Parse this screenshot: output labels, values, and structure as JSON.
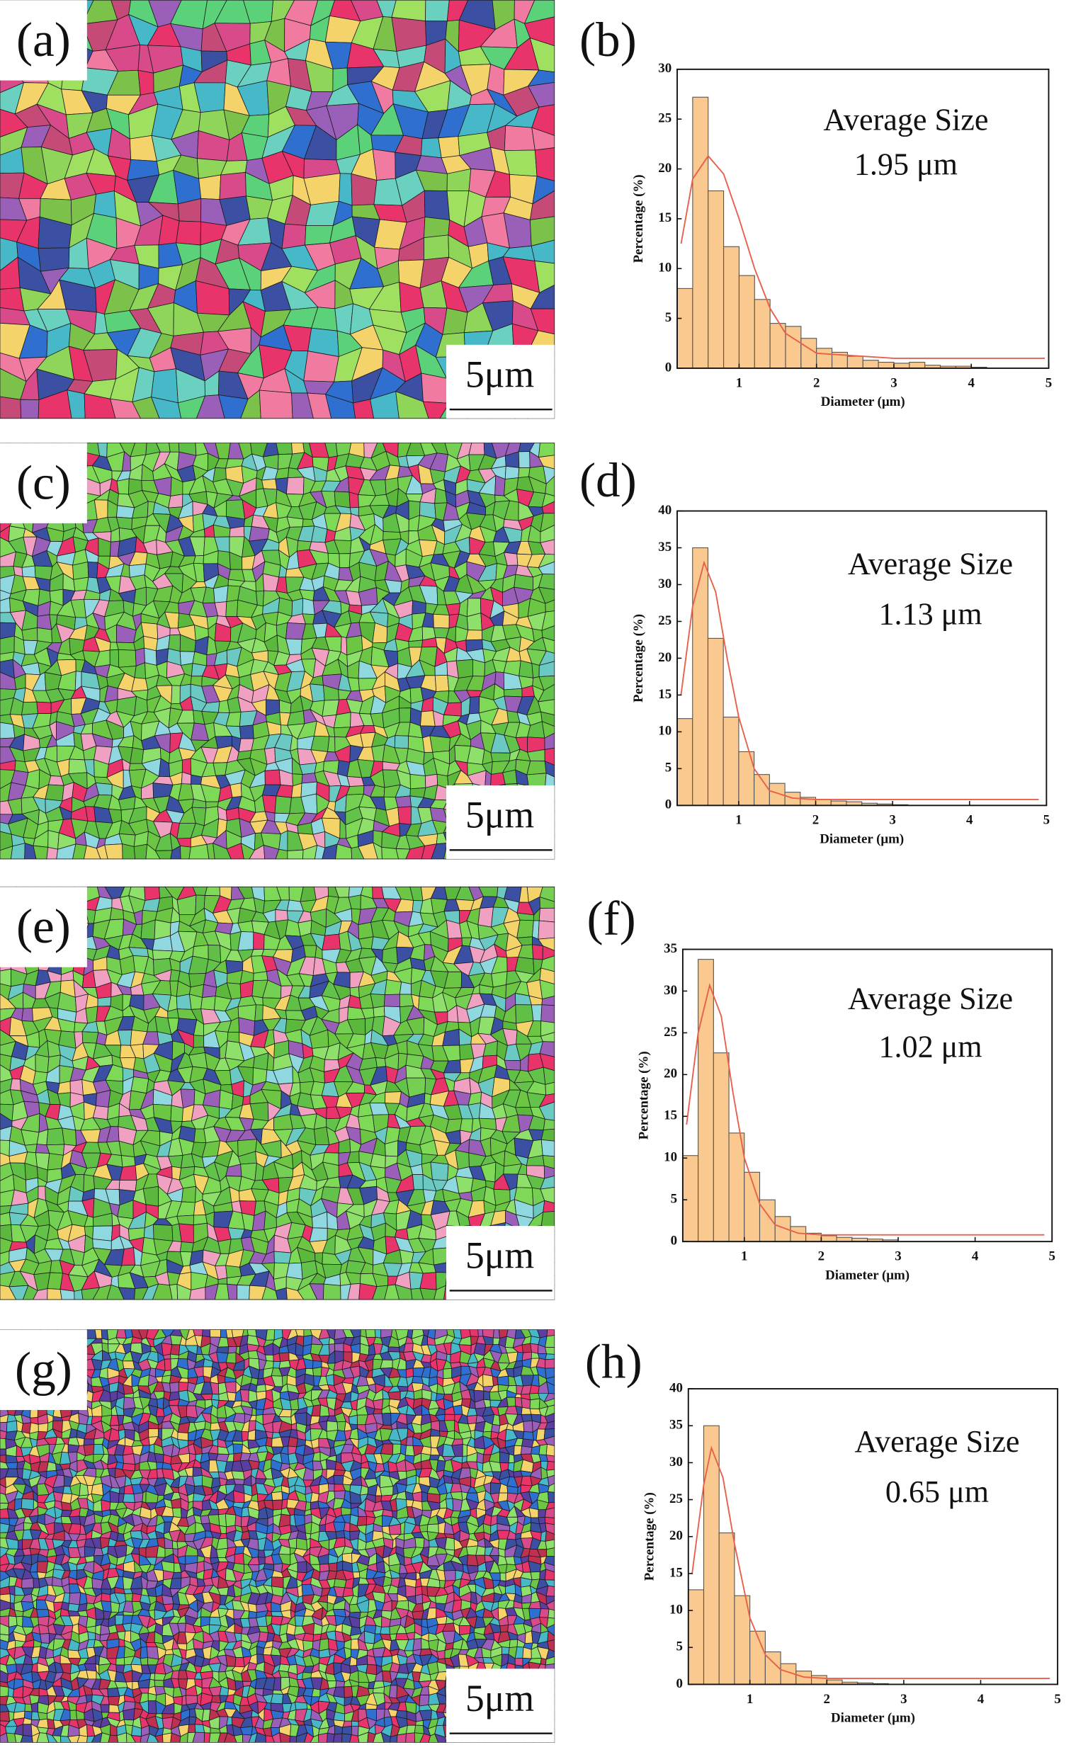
{
  "maps": [
    {
      "label": "(a)",
      "scale_bar": "5μm"
    },
    {
      "label": "(c)",
      "scale_bar": "5μm"
    },
    {
      "label": "(e)",
      "scale_bar": "5μm"
    },
    {
      "label": "(g)",
      "scale_bar": "5μm"
    }
  ],
  "chart_data": [
    {
      "type": "histogram",
      "label": "(b)",
      "annotations": [
        "Average Size",
        "1.95 μm"
      ],
      "x_label": "Diameter (μm)",
      "y_label": "Percentage (%)",
      "bins": [
        0.2,
        0.4,
        0.6,
        0.8,
        1.0,
        1.2,
        1.4,
        1.6,
        1.8,
        2.0,
        2.2,
        2.4,
        2.6,
        2.8,
        3.0,
        3.2,
        3.4,
        3.6,
        3.8,
        4.0,
        4.2
      ],
      "values": [
        8,
        27.2,
        17.8,
        12.2,
        9.3,
        6.9,
        4.5,
        4.2,
        3,
        2,
        1.6,
        1.2,
        0.8,
        0.6,
        0.5,
        0.6,
        0.3,
        0.2,
        0.2,
        0.1
      ],
      "color": "#f9c98f",
      "fit": {
        "x": [
          0.25,
          0.4,
          0.6,
          0.8,
          1.0,
          1.2,
          1.4,
          1.6,
          2,
          3,
          4,
          4.95
        ],
        "values": [
          12.5,
          19,
          21.3,
          19.5,
          15,
          10,
          6,
          3.5,
          1.5,
          1,
          1,
          1
        ],
        "color": "#e8604c"
      },
      "xlim": [
        0.2,
        5
      ],
      "xticks": [
        1,
        2,
        3,
        4,
        5
      ],
      "ylim": [
        0,
        30
      ],
      "yticks": [
        0,
        5,
        10,
        15,
        20,
        25,
        30
      ]
    },
    {
      "type": "histogram",
      "label": "(d)",
      "annotations": [
        "Average Size",
        "1.13 μm"
      ],
      "x_label": "Diameter (μm)",
      "y_label": "Percentage (%)",
      "bins": [
        0.2,
        0.4,
        0.6,
        0.8,
        1.0,
        1.2,
        1.4,
        1.6,
        1.8,
        2.0,
        2.2,
        2.4,
        2.6,
        2.8,
        3.0,
        3.2
      ],
      "values": [
        11.8,
        35,
        22.7,
        12,
        7.3,
        4.2,
        3,
        1.8,
        1.1,
        0.8,
        0.6,
        0.5,
        0.3,
        0.2,
        0.1
      ],
      "color": "#f9c98f",
      "fit": {
        "x": [
          0.25,
          0.4,
          0.55,
          0.7,
          0.85,
          1.0,
          1.2,
          1.4,
          1.7,
          2,
          3,
          4,
          4.9
        ],
        "values": [
          15,
          27,
          33,
          29,
          20,
          12,
          5,
          2,
          1,
          0.8,
          0.8,
          0.8,
          0.8
        ],
        "color": "#e8604c"
      },
      "xlim": [
        0.2,
        5
      ],
      "xticks": [
        1,
        2,
        3,
        4,
        5
      ],
      "ylim": [
        0,
        40
      ],
      "yticks": [
        0,
        5,
        10,
        15,
        20,
        25,
        30,
        35,
        40
      ]
    },
    {
      "type": "histogram",
      "label": "(f)",
      "annotations": [
        "Average Size",
        "1.02 μm"
      ],
      "x_label": "Diameter (μm)",
      "y_label": "Percentage (%)",
      "bins": [
        0.2,
        0.4,
        0.6,
        0.8,
        1.0,
        1.2,
        1.4,
        1.6,
        1.8,
        2.0,
        2.2,
        2.4,
        2.6,
        2.8,
        3.0
      ],
      "values": [
        10.3,
        33.8,
        22.6,
        13,
        8.3,
        5,
        3,
        1.8,
        1,
        0.7,
        0.5,
        0.4,
        0.3,
        0.2
      ],
      "color": "#f9c98f",
      "fit": {
        "x": [
          0.25,
          0.4,
          0.55,
          0.7,
          0.85,
          1.0,
          1.2,
          1.4,
          1.7,
          2,
          3,
          4,
          4.9
        ],
        "values": [
          14,
          25,
          30.7,
          27,
          18,
          10,
          4.5,
          2,
          1,
          0.8,
          0.8,
          0.8,
          0.8
        ],
        "color": "#e8604c"
      },
      "xlim": [
        0.2,
        5
      ],
      "xticks": [
        1,
        2,
        3,
        4,
        5
      ],
      "ylim": [
        0,
        35
      ],
      "yticks": [
        0,
        5,
        10,
        15,
        20,
        25,
        30,
        35
      ]
    },
    {
      "type": "histogram",
      "label": "(h)",
      "annotations": [
        "Average Size",
        "0.65 μm"
      ],
      "x_label": "Diameter (μm)",
      "y_label": "Percentage (%)",
      "bins": [
        0.2,
        0.4,
        0.6,
        0.8,
        1.0,
        1.2,
        1.4,
        1.6,
        1.8,
        2.0,
        2.2,
        2.4,
        2.6,
        2.8
      ],
      "values": [
        12.8,
        35,
        20.5,
        12,
        7.2,
        4.4,
        2.8,
        1.8,
        1.2,
        0.6,
        0.3,
        0.2,
        0.1
      ],
      "color": "#f9c98f",
      "fit": {
        "x": [
          0.25,
          0.4,
          0.5,
          0.65,
          0.8,
          1.0,
          1.2,
          1.4,
          1.7,
          2,
          3,
          4,
          4.9
        ],
        "values": [
          15,
          27,
          32,
          28,
          19,
          9,
          4,
          2,
          1,
          0.8,
          0.8,
          0.8,
          0.8
        ],
        "color": "#e8604c"
      },
      "xlim": [
        0.2,
        5
      ],
      "xticks": [
        1,
        2,
        3,
        4,
        5
      ],
      "ylim": [
        0,
        40
      ],
      "yticks": [
        0,
        5,
        10,
        15,
        20,
        25,
        30,
        35,
        40
      ]
    }
  ]
}
